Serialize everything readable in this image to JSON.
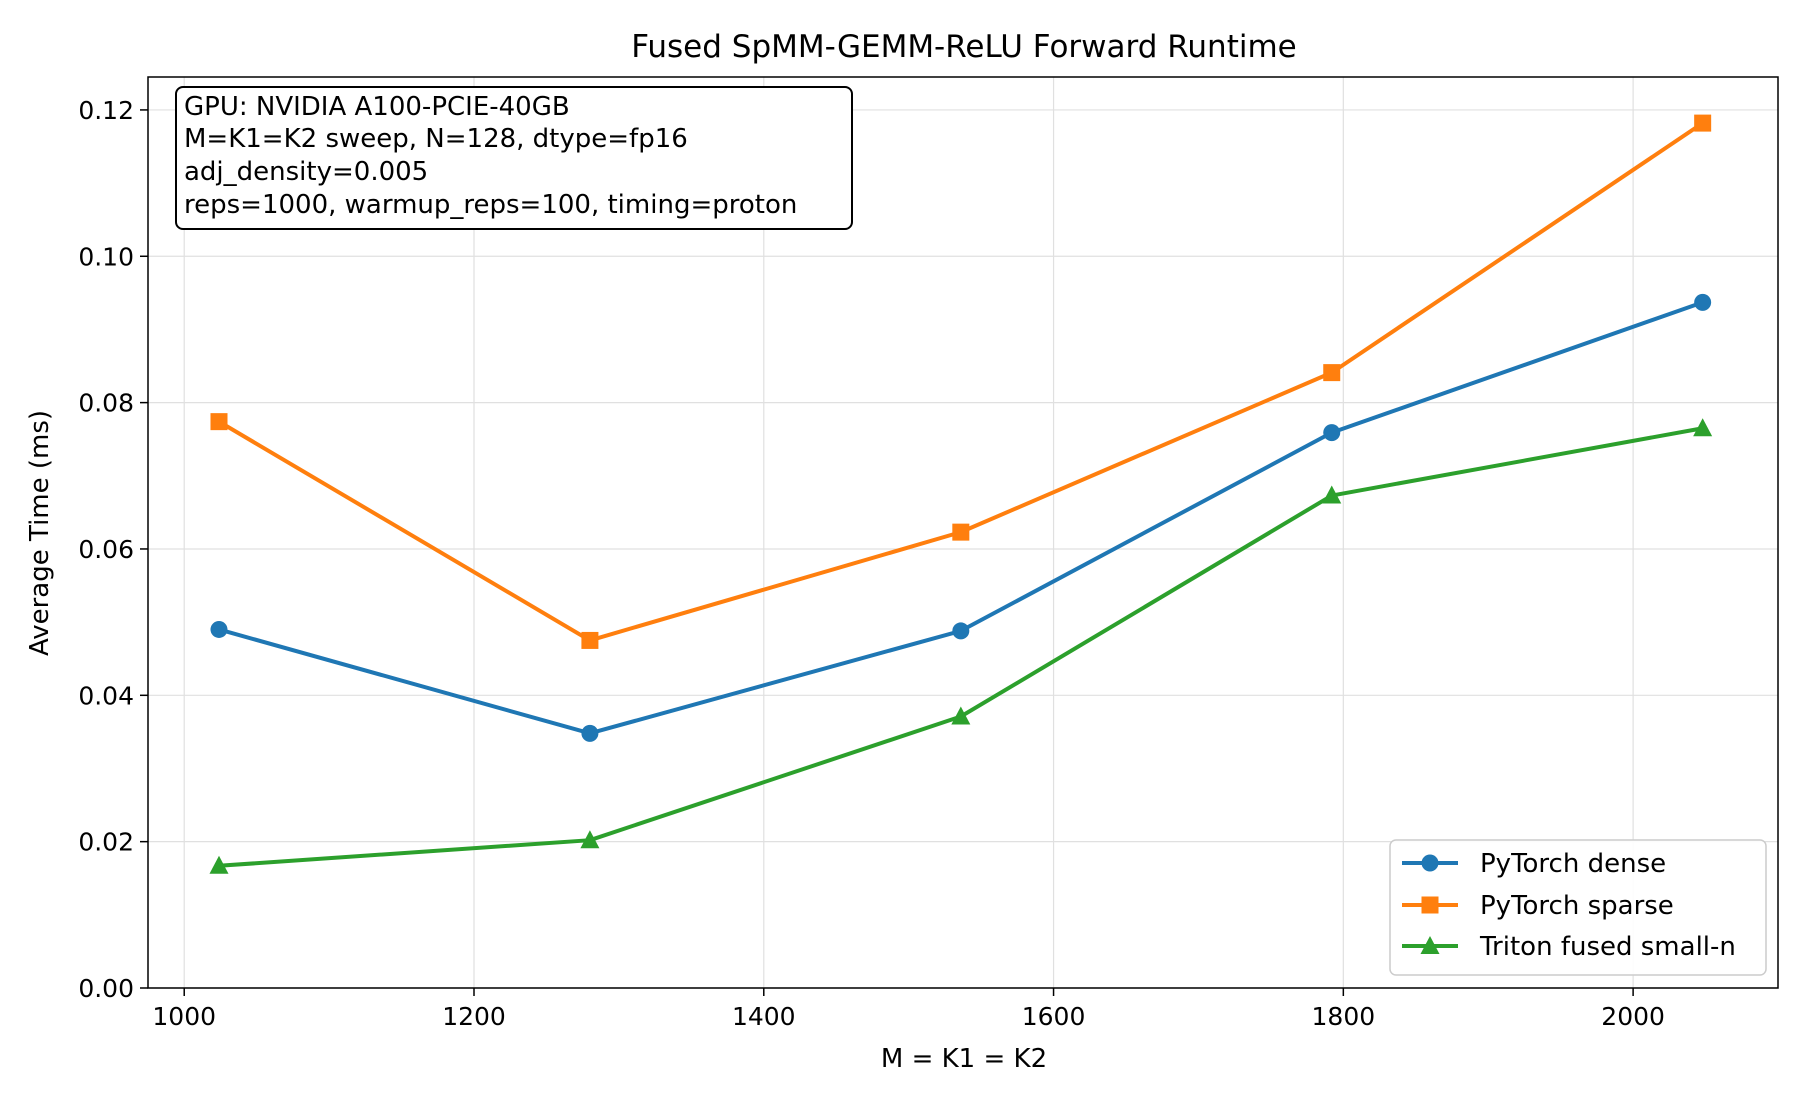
{
  "chart_data": {
    "type": "line",
    "title": "Fused SpMM-GEMM-ReLU Forward Runtime",
    "xlabel": "M = K1 = K2",
    "ylabel": "Average Time (ms)",
    "xlim": [
      975,
      2100
    ],
    "ylim": [
      0,
      0.1245
    ],
    "grid": true,
    "legend_position": "lower-right",
    "x_ticks": [
      1000,
      1200,
      1400,
      1600,
      1800,
      2000
    ],
    "y_ticks": [
      0.0,
      0.02,
      0.04,
      0.06,
      0.08,
      0.1,
      0.12
    ],
    "x_tick_labels": [
      "1000",
      "1200",
      "1400",
      "1600",
      "1800",
      "2000"
    ],
    "y_tick_labels": [
      "0.00",
      "0.02",
      "0.04",
      "0.06",
      "0.08",
      "0.10",
      "0.12"
    ],
    "x": [
      1024,
      1280,
      1536,
      1792,
      2048
    ],
    "series": [
      {
        "name": "PyTorch dense",
        "color": "#1f77b4",
        "marker": "circle",
        "values": [
          0.049,
          0.0348,
          0.0488,
          0.0759,
          0.0937
        ]
      },
      {
        "name": "PyTorch sparse",
        "color": "#ff7f0e",
        "marker": "square",
        "values": [
          0.0774,
          0.0475,
          0.0623,
          0.0841,
          0.1182
        ]
      },
      {
        "name": "Triton fused small-n",
        "color": "#2ca02c",
        "marker": "triangle",
        "values": [
          0.0167,
          0.0202,
          0.0371,
          0.0673,
          0.0765
        ]
      }
    ],
    "annotation_lines": [
      "GPU: NVIDIA A100-PCIE-40GB",
      "M=K1=K2 sweep, N=128, dtype=fp16",
      "adj_density=0.005",
      "reps=1000, warmup_reps=100, timing=proton"
    ]
  }
}
